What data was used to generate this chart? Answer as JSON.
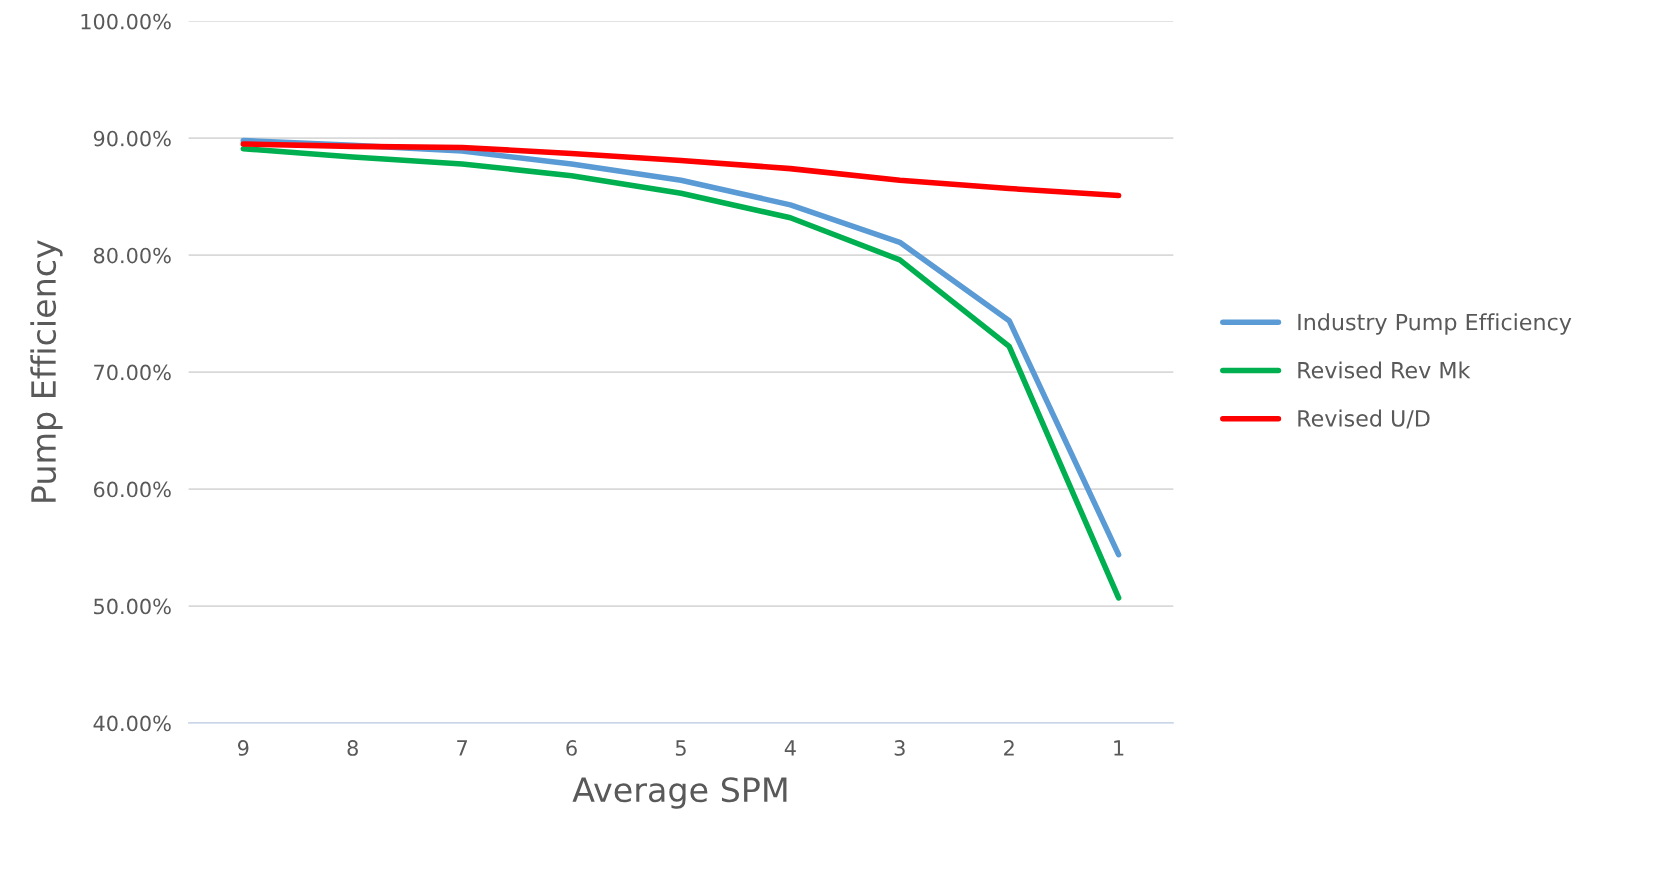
{
  "chart_data": {
    "type": "line",
    "xlabel": "Average SPM",
    "ylabel": "Pump Efficiency",
    "categories": [
      "9",
      "8",
      "7",
      "6",
      "5",
      "4",
      "3",
      "2",
      "1"
    ],
    "series": [
      {
        "name": "Industry Pump Efficiency",
        "color": "#5b9bd5",
        "values": [
          89.8,
          89.4,
          88.9,
          87.8,
          86.4,
          84.3,
          81.1,
          74.4,
          54.4
        ]
      },
      {
        "name": "Revised Rev Mk",
        "color": "#00b050",
        "values": [
          89.1,
          88.4,
          87.8,
          86.8,
          85.3,
          83.2,
          79.6,
          72.2,
          50.7
        ]
      },
      {
        "name": "Revised U/D",
        "color": "#ff0000",
        "values": [
          89.5,
          89.3,
          89.2,
          88.7,
          88.1,
          87.4,
          86.4,
          85.7,
          85.1
        ]
      }
    ],
    "ylim": [
      40,
      100
    ],
    "yticks": [
      {
        "value": 40,
        "label": "40.00%"
      },
      {
        "value": 50,
        "label": "50.00%"
      },
      {
        "value": 60,
        "label": "60.00%"
      },
      {
        "value": 70,
        "label": "70.00%"
      },
      {
        "value": 80,
        "label": "80.00%"
      },
      {
        "value": 90,
        "label": "90.00%"
      },
      {
        "value": 100,
        "label": "100.00%"
      }
    ],
    "grid": "y",
    "legend": "right",
    "marker": "none",
    "line_style": "solid"
  }
}
